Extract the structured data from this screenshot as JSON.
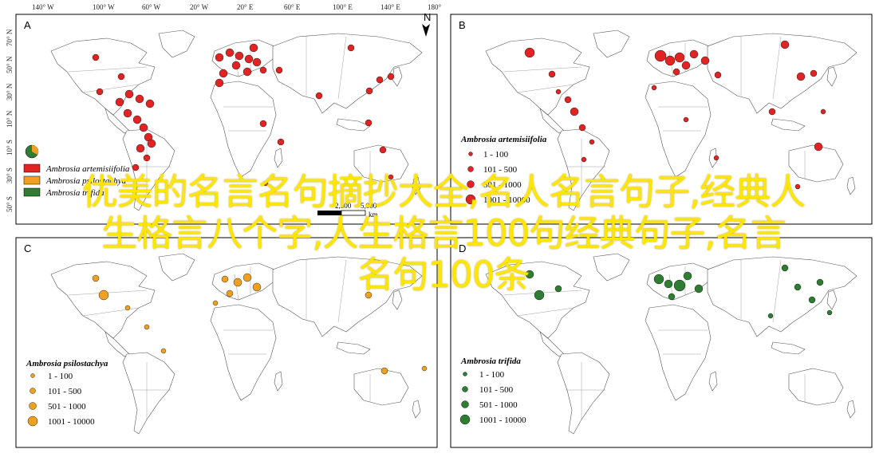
{
  "axis": {
    "top_longitudes": [
      "140° W",
      "100° W",
      "60° W",
      "20° W",
      "20° E",
      "60° E",
      "100° E",
      "140° E",
      "180°"
    ],
    "left_latitudes": [
      "70° N",
      "50° N",
      "30° N",
      "10° N",
      "10° S",
      "30° S",
      "50° S"
    ]
  },
  "north_arrow": {
    "label": "N"
  },
  "panels": [
    {
      "letter": "A",
      "legend_title": "",
      "legend_items": [
        {
          "label": "Ambrosia artemisiifolia",
          "color": "#e02424"
        },
        {
          "label": "Ambrosia psilostachya",
          "color": "#f0a020"
        },
        {
          "label": "Ambrosia trifida",
          "color": "#2e7d32"
        }
      ]
    },
    {
      "letter": "B",
      "legend_title": "Ambrosia artemisiifolia",
      "color": "#e02424",
      "legend_items": [
        "1 - 100",
        "101 - 500",
        "501 - 1000",
        "1001 - 10000"
      ]
    },
    {
      "letter": "C",
      "legend_title": "Ambrosia psilostachya",
      "color": "#f0a020",
      "legend_items": [
        "1 - 100",
        "101 - 500",
        "501 - 1000",
        "1001 - 10000"
      ]
    },
    {
      "letter": "D",
      "legend_title": "Ambrosia trifida",
      "color": "#2e7d32",
      "legend_items": [
        "1 - 100",
        "101 - 500",
        "501 - 1000",
        "1001 - 10000"
      ]
    }
  ],
  "scale_bar": {
    "label_mid": "2,500",
    "label_end": "5,000",
    "unit": "km"
  },
  "overlay_text": {
    "line1": "优美的名言名句摘抄大全,名人名言句子,经典人",
    "line2": "生格言八个字,人生格言100句经典句子,名言",
    "line3": "名句100条"
  }
}
